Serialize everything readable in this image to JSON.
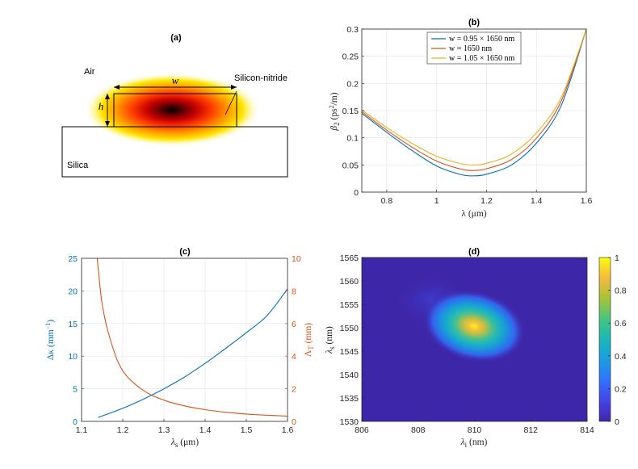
{
  "chart_data": [
    {
      "id": "a",
      "type": "diagram",
      "title": "(a)",
      "labels": {
        "air": "Air",
        "core": "Silicon-nitride",
        "substrate": "Silica",
        "width": "w",
        "height": "h"
      }
    },
    {
      "id": "b",
      "type": "line",
      "title": "(b)",
      "xlabel": "λ (μm)",
      "ylabel": "β2 (ps²/m)",
      "ylabel_main": "β",
      "ylabel_sub": "2",
      "ylabel_rest": " (ps",
      "ylabel_sup": "2",
      "ylabel_end": "/m)",
      "xlim": [
        0.7,
        1.6
      ],
      "ylim": [
        0,
        0.3
      ],
      "xticks": [
        0.8,
        1,
        1.2,
        1.4,
        1.6
      ],
      "xtick_labels": [
        "0.8",
        "1",
        "1.2",
        "1.4",
        "1.6"
      ],
      "yticks": [
        0,
        0.05,
        0.1,
        0.15,
        0.2,
        0.25,
        0.3
      ],
      "ytick_labels": [
        "0",
        "0.05",
        "0.1",
        "0.15",
        "0.2",
        "0.25",
        "0.3"
      ],
      "grid": true,
      "legend_position": "top-center",
      "x": [
        0.7,
        0.8,
        0.9,
        1.0,
        1.1,
        1.15,
        1.2,
        1.3,
        1.4,
        1.5,
        1.6
      ],
      "series": [
        {
          "name": "w = 0.95 × 1650 nm",
          "color": "#0072bd",
          "values": [
            0.145,
            0.11,
            0.077,
            0.048,
            0.032,
            0.03,
            0.033,
            0.05,
            0.09,
            0.16,
            0.3
          ]
        },
        {
          "name": "w = 1650 nm",
          "color": "#d95319",
          "values": [
            0.148,
            0.114,
            0.083,
            0.057,
            0.042,
            0.04,
            0.043,
            0.06,
            0.099,
            0.168,
            0.3
          ]
        },
        {
          "name": "w = 1.05 × 1650 nm",
          "color": "#edb120",
          "values": [
            0.151,
            0.119,
            0.09,
            0.066,
            0.052,
            0.05,
            0.053,
            0.07,
            0.109,
            0.175,
            0.3
          ]
        }
      ]
    },
    {
      "id": "c",
      "type": "line",
      "title": "(c)",
      "xlabel": "λs (μm)",
      "xlabel_main": "λ",
      "xlabel_sub": "s",
      "xlabel_rest": " (μm)",
      "xlim": [
        1.1,
        1.6
      ],
      "xticks": [
        1.1,
        1.2,
        1.3,
        1.4,
        1.5,
        1.6
      ],
      "xtick_labels": [
        "1.1",
        "1.2",
        "1.3",
        "1.4",
        "1.5",
        "1.6"
      ],
      "ylabel_left": "Δκ (mm⁻¹)",
      "ylabel_left_main": "Δκ (mm",
      "ylabel_left_sup": "−1",
      "ylabel_left_end": ")",
      "ylim_left": [
        0,
        25
      ],
      "yticks_left": [
        0,
        5,
        10,
        15,
        20,
        25
      ],
      "ytick_labels_left": [
        "0",
        "5",
        "10",
        "15",
        "20",
        "25"
      ],
      "ylabel_right": "ΛT (mm)",
      "ylabel_right_main": "Λ",
      "ylabel_right_sub": "T",
      "ylabel_right_rest": " (mm)",
      "ylim_right": [
        0,
        10
      ],
      "yticks_right": [
        0,
        2,
        4,
        6,
        8,
        10
      ],
      "ytick_labels_right": [
        "0",
        "2",
        "4",
        "6",
        "8",
        "10"
      ],
      "left_color": "#0072bd",
      "right_color": "#d95319",
      "grid": true,
      "series": [
        {
          "name": "Δκ",
          "axis": "left",
          "color": "#0072bd",
          "x": [
            1.14,
            1.2,
            1.25,
            1.3,
            1.35,
            1.4,
            1.45,
            1.5,
            1.55,
            1.6
          ],
          "values": [
            0.6,
            2.0,
            3.4,
            5.0,
            6.8,
            8.9,
            11.2,
            13.6,
            16.2,
            20.3
          ]
        },
        {
          "name": "ΛT",
          "axis": "right",
          "color": "#d95319",
          "x": [
            1.138,
            1.15,
            1.17,
            1.2,
            1.25,
            1.3,
            1.35,
            1.4,
            1.45,
            1.5,
            1.55,
            1.6
          ],
          "values": [
            10.0,
            7.2,
            5.0,
            3.1,
            1.9,
            1.3,
            0.95,
            0.72,
            0.56,
            0.45,
            0.38,
            0.32
          ]
        }
      ]
    },
    {
      "id": "d",
      "type": "heatmap",
      "title": "(d)",
      "xlabel": "λi (nm)",
      "xlabel_main": "λ",
      "xlabel_sub": "i",
      "xlabel_rest": " (nm)",
      "ylabel": "λs (nm)",
      "ylabel_main": "λ",
      "ylabel_sub": "s",
      "ylabel_rest": " (nm)",
      "xlim": [
        806,
        814
      ],
      "ylim": [
        1530,
        1565
      ],
      "xticks": [
        806,
        808,
        810,
        812,
        814
      ],
      "xtick_labels": [
        "806",
        "808",
        "810",
        "812",
        "814"
      ],
      "yticks": [
        1530,
        1535,
        1540,
        1545,
        1550,
        1555,
        1560,
        1565
      ],
      "ytick_labels": [
        "1530",
        "1535",
        "1540",
        "1545",
        "1550",
        "1555",
        "1560",
        "1565"
      ],
      "peak": {
        "x": 810.0,
        "y": 1550.0,
        "value": 1
      },
      "colorbar": {
        "range": [
          0,
          1
        ],
        "ticks": [
          0,
          0.2,
          0.4,
          0.6,
          0.8,
          1
        ],
        "tick_labels": [
          "0",
          "0.2",
          "0.4",
          "0.6",
          "0.8",
          "1"
        ],
        "colormap": "parula"
      }
    }
  ]
}
